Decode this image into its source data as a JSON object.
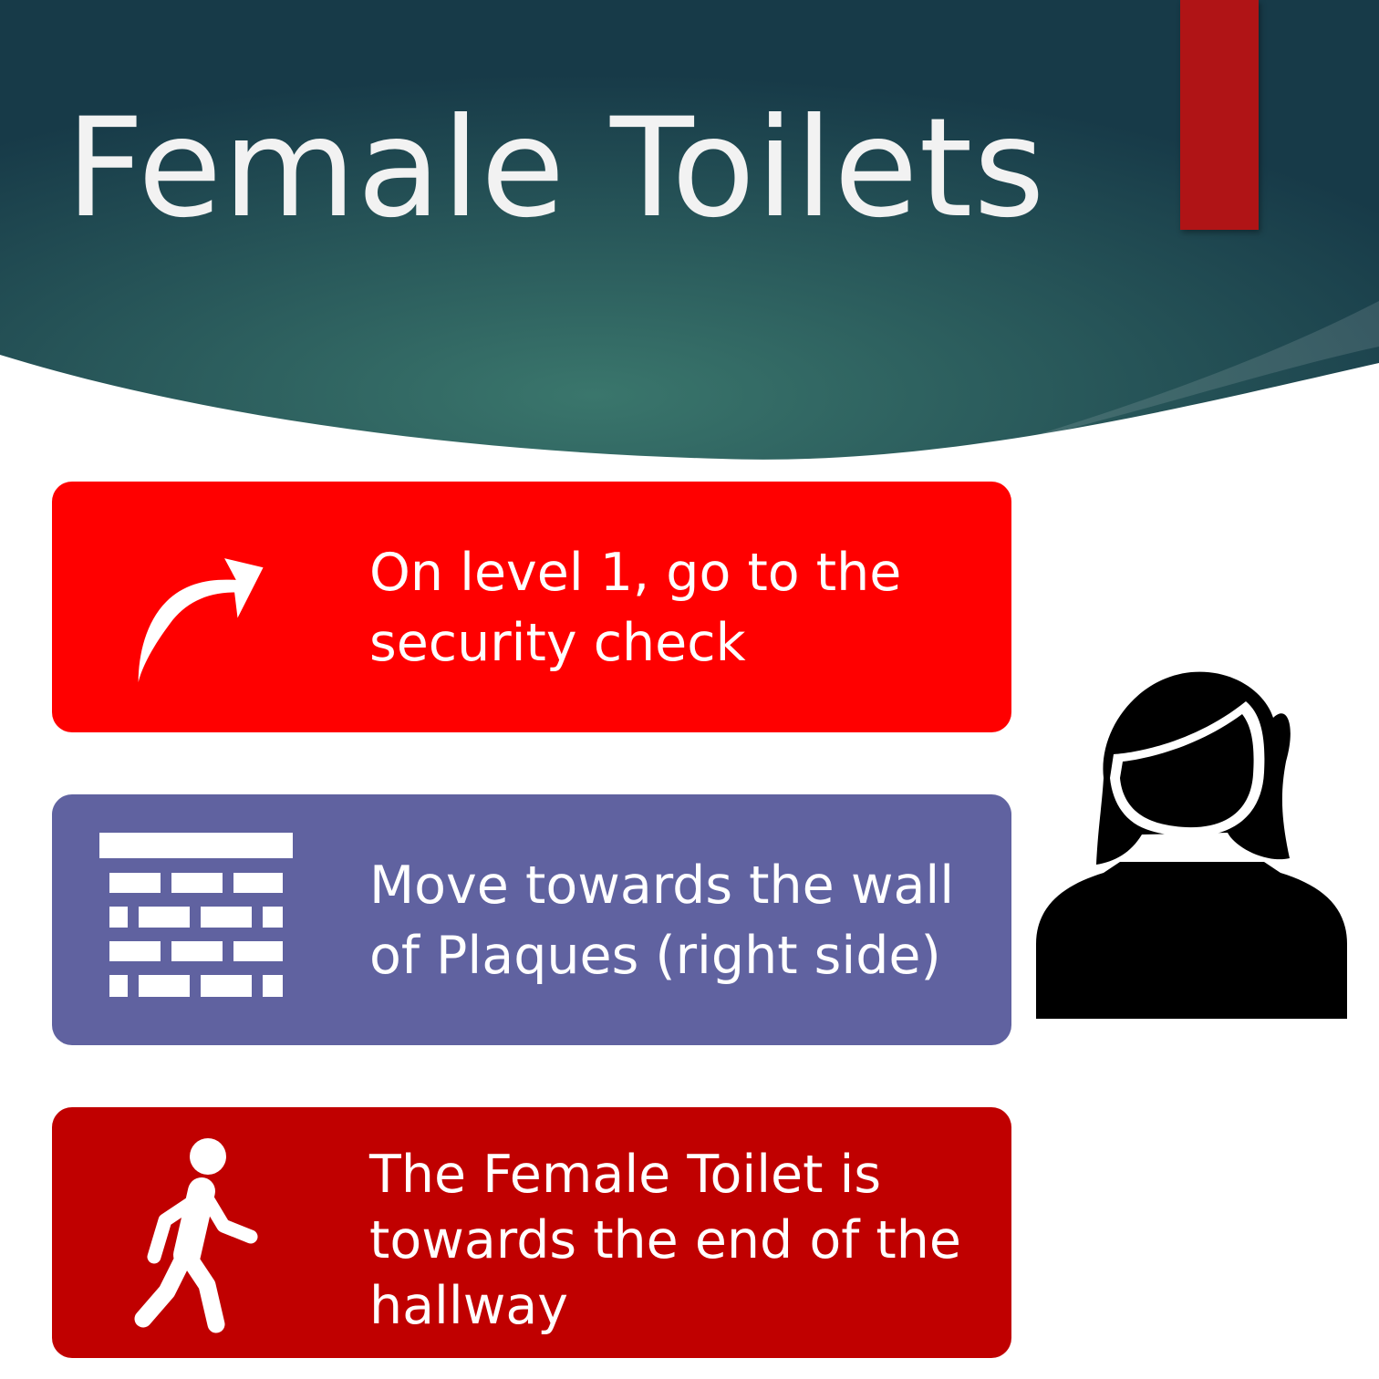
{
  "title": "Female Toilets",
  "colors": {
    "header_dark": "#173a48",
    "header_light": "#3a766c",
    "accent_bar": "#b01416",
    "card_1": "#ff0000",
    "card_2": "#6062a0",
    "card_3": "#c00000",
    "icon_white": "#ffffff",
    "person_icon": "#000000"
  },
  "steps": [
    {
      "text": "On level 1, go to the security check",
      "icon": "curved-arrow-right-icon"
    },
    {
      "text": "Move towards the wall of Plaques (right side)",
      "icon": "brick-wall-icon"
    },
    {
      "text": "The Female Toilet is towards the end of the hallway",
      "icon": "walking-person-icon"
    }
  ],
  "side_icon": "woman-icon"
}
